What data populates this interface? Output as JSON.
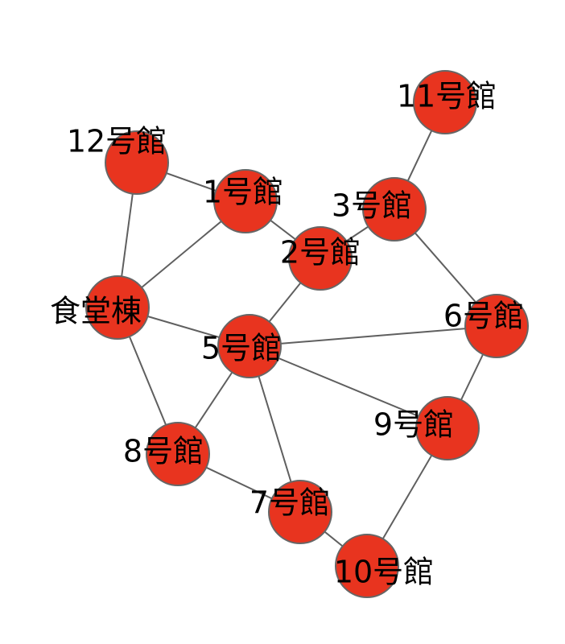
{
  "graph": {
    "node_color": "#e8341f",
    "node_border_color": "#666666",
    "edge_color": "#5f5f5f",
    "nodes": [
      {
        "id": "n12",
        "label": "12号館"
      },
      {
        "id": "n1",
        "label": "1号館"
      },
      {
        "id": "n11",
        "label": "11号館"
      },
      {
        "id": "n3",
        "label": "3号館"
      },
      {
        "id": "n2",
        "label": "2号館"
      },
      {
        "id": "cafeteria",
        "label": "食堂棟"
      },
      {
        "id": "n5",
        "label": "5号館"
      },
      {
        "id": "n6",
        "label": "6号館"
      },
      {
        "id": "n9",
        "label": "9号館"
      },
      {
        "id": "n8",
        "label": "8号館"
      },
      {
        "id": "n7",
        "label": "7号館"
      },
      {
        "id": "n10",
        "label": "10号館"
      }
    ],
    "edges": [
      [
        "n12",
        "n1"
      ],
      [
        "n12",
        "cafeteria"
      ],
      [
        "n1",
        "cafeteria"
      ],
      [
        "n1",
        "n2"
      ],
      [
        "n11",
        "n3"
      ],
      [
        "n3",
        "n2"
      ],
      [
        "n3",
        "n6"
      ],
      [
        "n2",
        "n5"
      ],
      [
        "cafeteria",
        "n5"
      ],
      [
        "cafeteria",
        "n8"
      ],
      [
        "n5",
        "n6"
      ],
      [
        "n5",
        "n9"
      ],
      [
        "n5",
        "n8"
      ],
      [
        "n5",
        "n7"
      ],
      [
        "n6",
        "n9"
      ],
      [
        "n9",
        "n10"
      ],
      [
        "n8",
        "n7"
      ],
      [
        "n7",
        "n10"
      ]
    ]
  }
}
